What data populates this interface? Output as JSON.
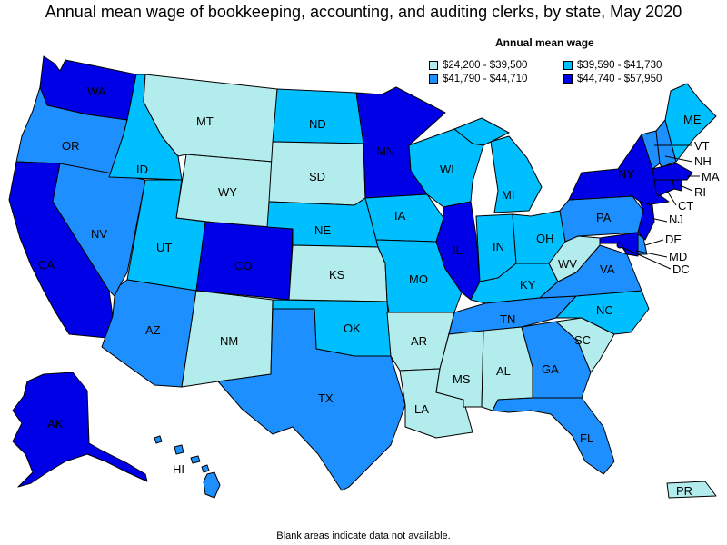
{
  "title": "Annual mean wage of bookkeeping, accounting, and auditing clerks, by state, May 2020",
  "legend": {
    "title": "Annual mean wage",
    "items": [
      {
        "label": "$24,200 - $39,500",
        "color": "#b3ecec"
      },
      {
        "label": "$39,590 - $41,730",
        "color": "#00bfff"
      },
      {
        "label": "$41,790 - $44,710",
        "color": "#1e8fff"
      },
      {
        "label": "$44,740 - $57,950",
        "color": "#0000e6"
      }
    ]
  },
  "footnote": "Blank areas indicate data not available.",
  "states": [
    {
      "abbr": "WA",
      "tier": 3
    },
    {
      "abbr": "OR",
      "tier": 2
    },
    {
      "abbr": "CA",
      "tier": 3
    },
    {
      "abbr": "NV",
      "tier": 2
    },
    {
      "abbr": "ID",
      "tier": 1
    },
    {
      "abbr": "MT",
      "tier": 0
    },
    {
      "abbr": "WY",
      "tier": 0
    },
    {
      "abbr": "UT",
      "tier": 1
    },
    {
      "abbr": "AZ",
      "tier": 2
    },
    {
      "abbr": "CO",
      "tier": 3
    },
    {
      "abbr": "NM",
      "tier": 0
    },
    {
      "abbr": "ND",
      "tier": 1
    },
    {
      "abbr": "SD",
      "tier": 0
    },
    {
      "abbr": "NE",
      "tier": 1
    },
    {
      "abbr": "KS",
      "tier": 0
    },
    {
      "abbr": "OK",
      "tier": 1
    },
    {
      "abbr": "TX",
      "tier": 2
    },
    {
      "abbr": "MN",
      "tier": 3
    },
    {
      "abbr": "IA",
      "tier": 1
    },
    {
      "abbr": "MO",
      "tier": 1
    },
    {
      "abbr": "AR",
      "tier": 0
    },
    {
      "abbr": "LA",
      "tier": 0
    },
    {
      "abbr": "WI",
      "tier": 1
    },
    {
      "abbr": "IL",
      "tier": 3
    },
    {
      "abbr": "MI",
      "tier": 1
    },
    {
      "abbr": "IN",
      "tier": 1
    },
    {
      "abbr": "OH",
      "tier": 1
    },
    {
      "abbr": "KY",
      "tier": 1
    },
    {
      "abbr": "TN",
      "tier": 2
    },
    {
      "abbr": "MS",
      "tier": 0
    },
    {
      "abbr": "AL",
      "tier": 0
    },
    {
      "abbr": "GA",
      "tier": 2
    },
    {
      "abbr": "FL",
      "tier": 2
    },
    {
      "abbr": "SC",
      "tier": 0
    },
    {
      "abbr": "NC",
      "tier": 1
    },
    {
      "abbr": "VA",
      "tier": 2
    },
    {
      "abbr": "WV",
      "tier": 0
    },
    {
      "abbr": "PA",
      "tier": 2
    },
    {
      "abbr": "NY",
      "tier": 3
    },
    {
      "abbr": "VT",
      "tier": 2
    },
    {
      "abbr": "NH",
      "tier": 2
    },
    {
      "abbr": "ME",
      "tier": 1
    },
    {
      "abbr": "MA",
      "tier": 3
    },
    {
      "abbr": "RI",
      "tier": 3
    },
    {
      "abbr": "CT",
      "tier": 3
    },
    {
      "abbr": "NJ",
      "tier": 3
    },
    {
      "abbr": "DE",
      "tier": 2
    },
    {
      "abbr": "MD",
      "tier": 3
    },
    {
      "abbr": "DC",
      "tier": 3
    },
    {
      "abbr": "AK",
      "tier": 3
    },
    {
      "abbr": "HI",
      "tier": 2
    },
    {
      "abbr": "PR",
      "tier": 0
    }
  ]
}
